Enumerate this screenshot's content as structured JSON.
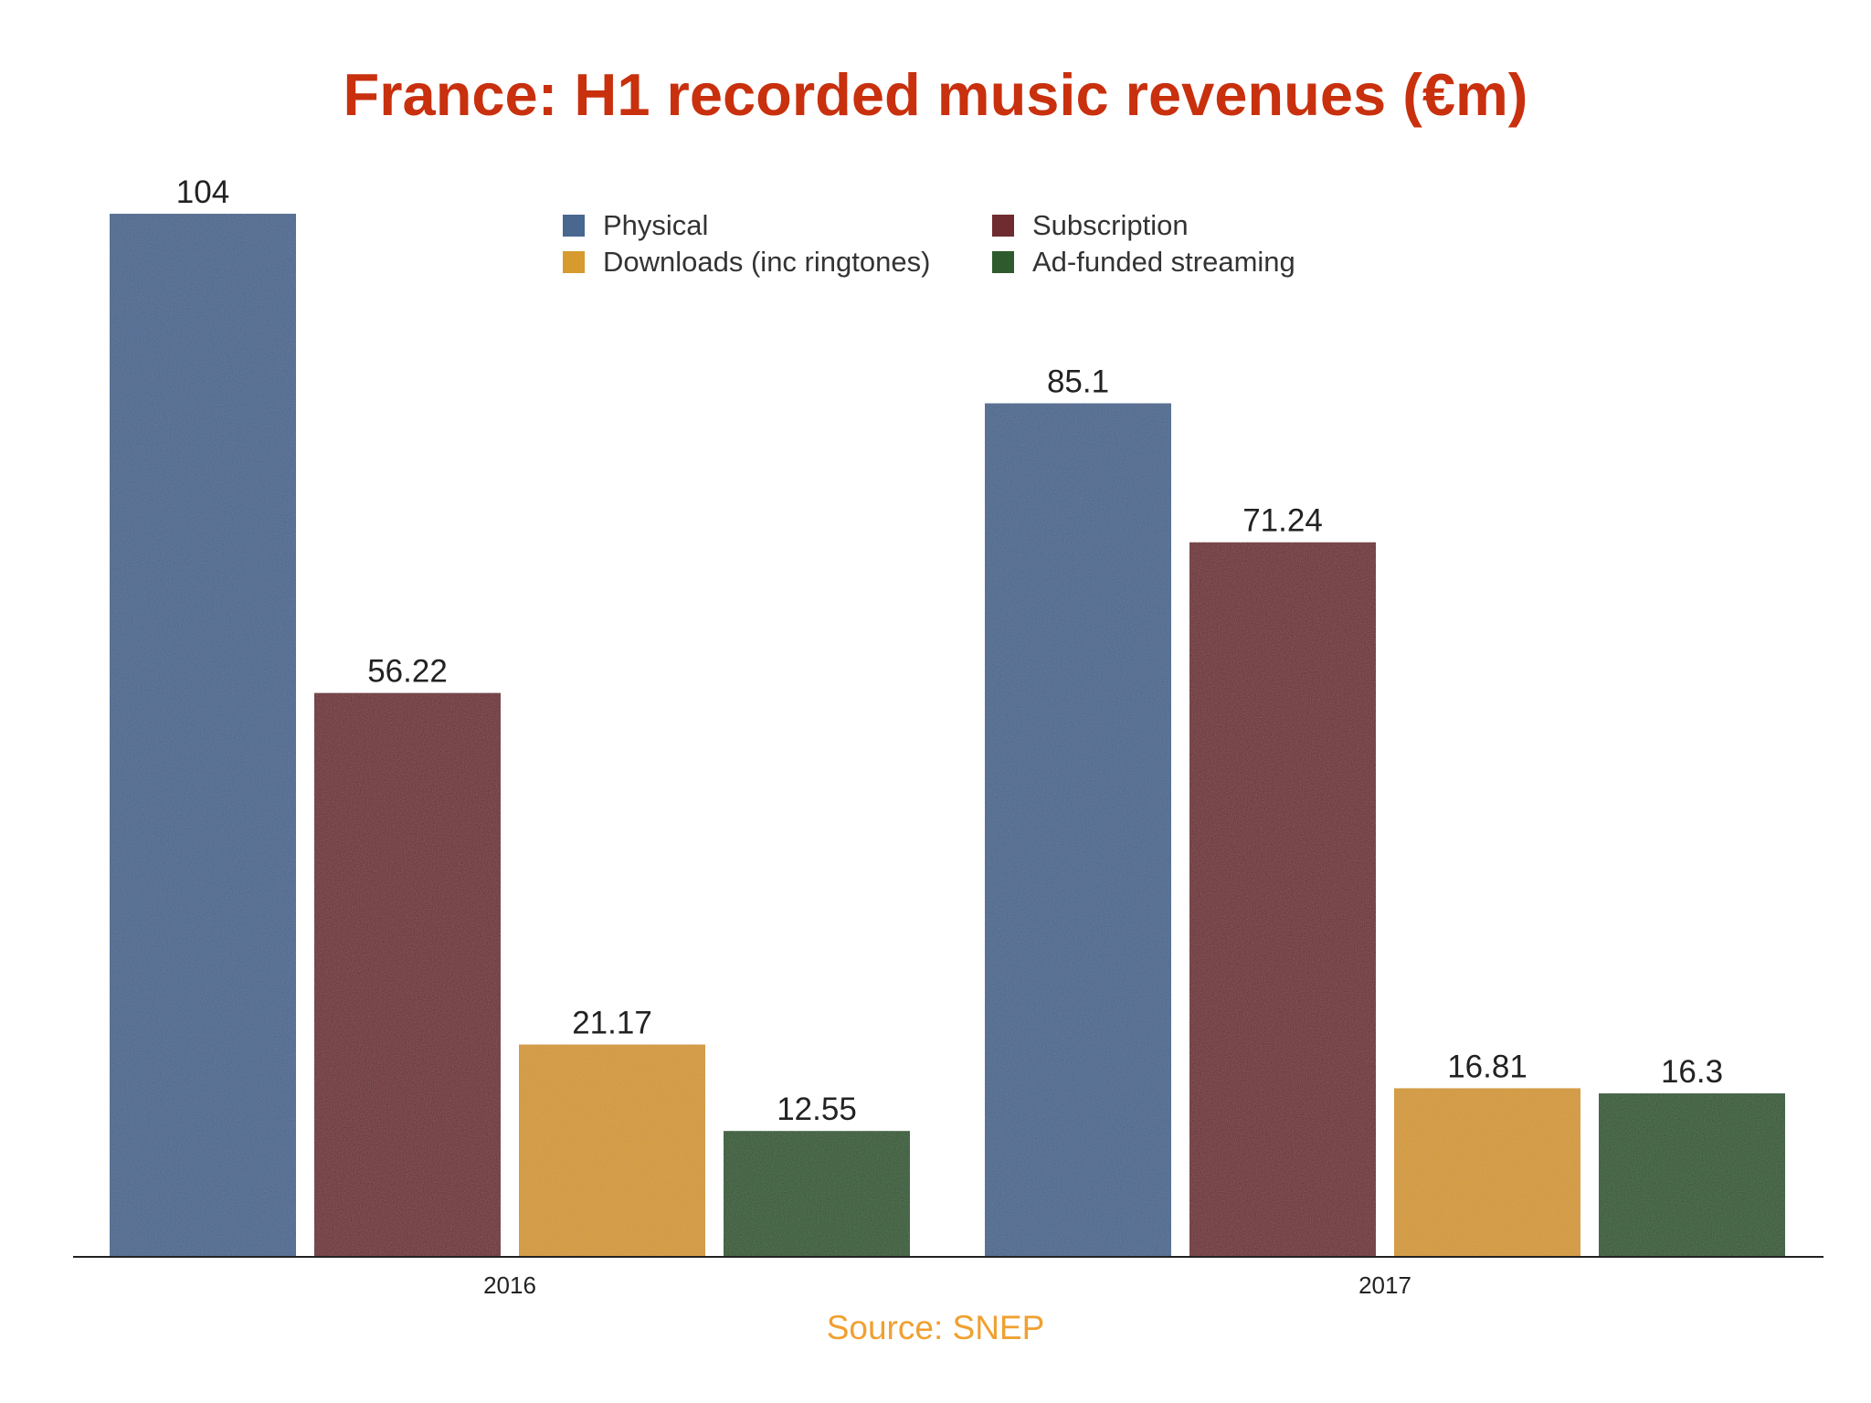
{
  "chart_data": {
    "type": "bar",
    "title": "France: H1 recorded music revenues (€m)",
    "categories": [
      "2016",
      "2017"
    ],
    "series": [
      {
        "name": "Physical",
        "color": "#4a6790",
        "values": [
          104,
          85.1
        ],
        "labels": [
          "104",
          "85.1"
        ]
      },
      {
        "name": "Subscription",
        "color": "#6e2c30",
        "values": [
          56.22,
          71.24
        ],
        "labels": [
          "56.22",
          "71.24"
        ]
      },
      {
        "name": "Downloads (inc ringtones)",
        "color": "#d69a2e",
        "values": [
          21.17,
          16.81
        ],
        "labels": [
          "21.17",
          "16.81"
        ]
      },
      {
        "name": "Ad-funded streaming",
        "color": "#2f5a2e",
        "values": [
          12.55,
          16.3
        ],
        "labels": [
          "12.55",
          "16.3"
        ]
      }
    ],
    "xlabel": "",
    "ylabel": "",
    "ylim": [
      0,
      104
    ],
    "grid": false,
    "legend_position": "top-center",
    "source": "Source: SNEP"
  }
}
